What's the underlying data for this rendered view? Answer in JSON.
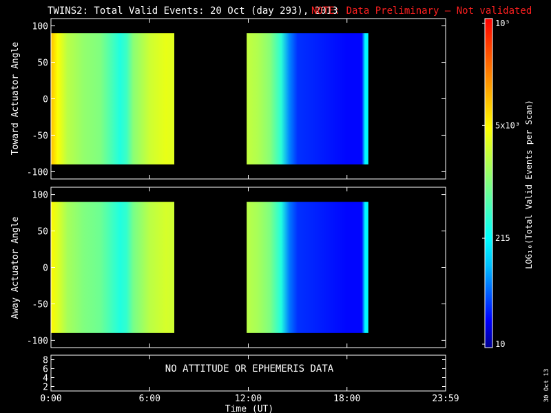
{
  "header": {
    "title": "TWINS2: Total Valid Events: 20 Oct (day 293), 2013",
    "note": "NOTE: Data Preliminary — Not validated",
    "note_color": "#ff2020"
  },
  "chart_data": [
    {
      "type": "heatmap",
      "ylabel": "Toward Actuator Angle",
      "ylim": [
        -110,
        110
      ],
      "yticks": [
        "100",
        "50",
        "0",
        "-50",
        "-100"
      ],
      "xlim_hours": [
        0,
        24
      ],
      "coverage_hours": [
        [
          0.0,
          7.5
        ],
        [
          11.9,
          19.3
        ]
      ],
      "profile_hours": [
        0,
        0.4,
        1.0,
        2.0,
        3.0,
        4.2,
        4.6,
        5.0,
        6.0,
        7.0,
        7.5,
        11.9,
        12.6,
        13.3,
        14.0,
        14.5,
        15.0,
        16.0,
        17.0,
        18.0,
        18.9,
        19.1,
        19.3
      ],
      "profile_log_counts": [
        4.0,
        3.65,
        3.3,
        3.1,
        3.0,
        2.5,
        2.65,
        3.05,
        3.4,
        3.55,
        3.5,
        3.35,
        3.25,
        3.05,
        2.55,
        1.8,
        1.5,
        1.45,
        1.4,
        1.35,
        1.35,
        2.3,
        2.3
      ]
    },
    {
      "type": "heatmap",
      "ylabel": "Away Actuator Angle",
      "ylim": [
        -110,
        110
      ],
      "yticks": [
        "100",
        "50",
        "0",
        "-50",
        "-100"
      ],
      "xlim_hours": [
        0,
        24
      ],
      "coverage_hours": [
        [
          0.0,
          7.5
        ],
        [
          11.9,
          19.3
        ]
      ],
      "profile_hours": [
        0,
        0.4,
        1.0,
        2.0,
        3.0,
        4.2,
        4.6,
        5.0,
        6.0,
        7.0,
        7.5,
        11.9,
        12.6,
        13.3,
        14.0,
        14.5,
        15.0,
        16.0,
        17.0,
        18.0,
        18.9,
        19.1,
        19.3
      ],
      "profile_log_counts": [
        3.7,
        3.5,
        3.2,
        3.0,
        2.9,
        2.5,
        2.6,
        2.95,
        3.3,
        3.45,
        3.4,
        3.3,
        3.2,
        3.0,
        2.5,
        1.75,
        1.5,
        1.45,
        1.4,
        1.35,
        1.35,
        2.3,
        2.3
      ]
    },
    {
      "type": "line",
      "yticks": [
        "8",
        "6",
        "4",
        "2"
      ],
      "message": "NO ATTITUDE OR EPHEMERIS DATA",
      "xticks": [
        "0:00",
        "6:00",
        "12:00",
        "18:00",
        "23:59"
      ],
      "xlabel": "Time (UT)"
    }
  ],
  "colorbar": {
    "label": "LOG₁₀(Total Valid Events per Scan)",
    "ticks": [
      {
        "text": "10⁵",
        "log": 5.0
      },
      {
        "text": "5x10³",
        "log": 3.7
      },
      {
        "text": "215",
        "log": 2.33
      },
      {
        "text": "10",
        "log": 1.0
      }
    ],
    "log_range": [
      1,
      5
    ],
    "palette": [
      "#00008f",
      "#0000ff",
      "#0060ff",
      "#00c0ff",
      "#00ffff",
      "#40ffc0",
      "#80ff80",
      "#c0ff40",
      "#ffff00",
      "#ffc000",
      "#ff8000",
      "#ff4000",
      "#ff0000"
    ]
  },
  "footer": {
    "date_stamp": "30 Oct 13"
  }
}
